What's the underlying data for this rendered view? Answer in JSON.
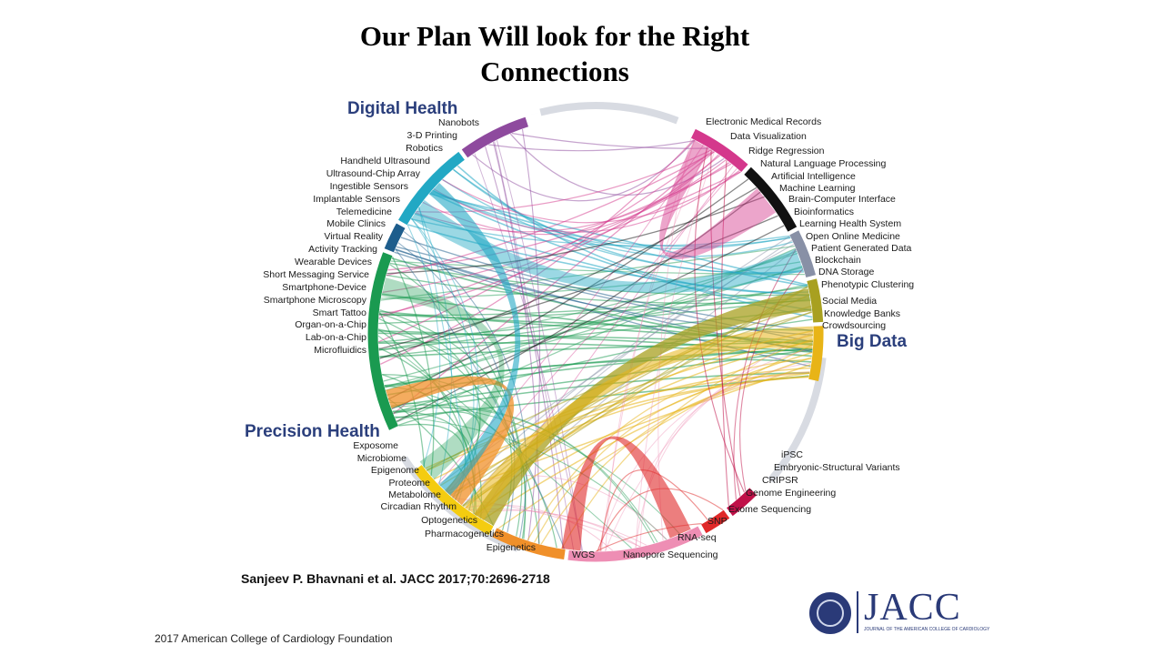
{
  "slide": {
    "title_line1": "Our Plan Will look for the Right",
    "title_line2": "Connections",
    "citation": "Sanjeev P. Bhavnani et al. JACC 2017;70:2696-2718",
    "footer": "2017 American College of Cardiology Foundation",
    "logo_text": "JACC",
    "logo_subtext": "JOURNAL OF THE AMERICAN COLLEGE OF CARDIOLOGY"
  },
  "groups": {
    "digital_health": "Digital Health",
    "big_data": "Big Data",
    "precision_health": "Precision Health"
  },
  "colors": {
    "purple": "#8e4a9e",
    "teal": "#22a8c4",
    "navy": "#1d5d8c",
    "green": "#1a9a50",
    "magenta": "#d4388c",
    "black": "#111111",
    "gray": "#8890a6",
    "olive": "#a8a020",
    "gold": "#e8b417",
    "yellow": "#f4cc10",
    "orange": "#f0902a",
    "pink": "#ee8eb4",
    "red": "#e02828",
    "crimson": "#c01048",
    "arrow": "#d8dbe2"
  },
  "labels": [
    "Nanobots",
    "3-D Printing",
    "Robotics",
    "Handheld Ultrasound",
    "Ultrasound-Chip Array",
    "Ingestible Sensors",
    "Implantable Sensors",
    "Telemedicine",
    "Mobile Clinics",
    "Virtual Reality",
    "Activity Tracking",
    "Wearable Devices",
    "Short Messaging Service",
    "Smartphone-Device",
    "Smartphone Microscopy",
    "Smart Tattoo",
    "Organ-on-a-Chip",
    "Lab-on-a-Chip",
    "Microfluidics",
    "Electronic Medical Records",
    "Data Visualization",
    "Ridge Regression",
    "Natural Language Processing",
    "Artificial Intelligence",
    "Machine Learning",
    "Brain-Computer Interface",
    "Bioinformatics",
    "Learning Health System",
    "Open Online Medicine",
    "Patient Generated Data",
    "Blockchain",
    "DNA Storage",
    "Phenotypic Clustering",
    "Social Media",
    "Knowledge Banks",
    "Crowdsourcing",
    "Exposome",
    "Microbiome",
    "Epigenome",
    "Proteome",
    "Metabolome",
    "Circadian Rhythm",
    "Optogenetics",
    "Pharmacogenetics",
    "Epigenetics",
    "iPSC",
    "Embryonic-Structural Variants",
    "CRIPSR",
    "Genome Engineering",
    "Exome Sequencing",
    "SNP",
    "RNA-seq",
    "WGS",
    "Nanopore Sequencing"
  ]
}
